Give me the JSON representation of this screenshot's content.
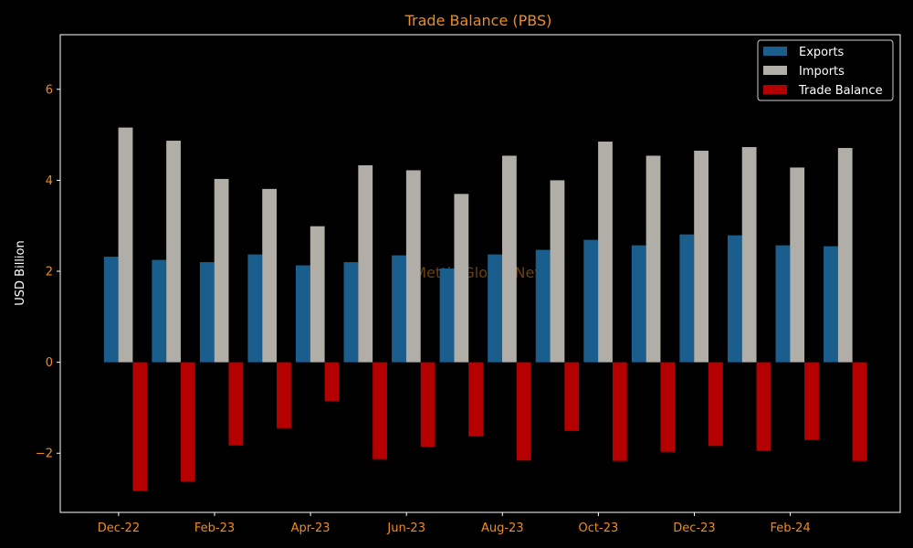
{
  "chart_data": {
    "type": "bar",
    "title": "Trade Balance (PBS)",
    "xlabel": "",
    "ylabel": "USD Billion",
    "watermark": "Mettis Global News",
    "ylim": [
      -3.3,
      7.2
    ],
    "yticks": [
      -2,
      0,
      2,
      4,
      6
    ],
    "ytick_labels": [
      "−2",
      "0",
      "2",
      "4",
      "6"
    ],
    "x_tick_labels": [
      "Dec-22",
      "Feb-23",
      "Apr-23",
      "Jun-23",
      "Aug-23",
      "Oct-23",
      "Dec-23",
      "Feb-24"
    ],
    "x_tick_every": 2,
    "categories_count": 16,
    "legend_position": "top-right",
    "grid": false,
    "colors": {
      "background": "#000000",
      "axes": "#ffffff",
      "text": "#f08c1e"
    },
    "series": [
      {
        "name": "Exports",
        "color": "#1a5e8e",
        "values": [
          2.32,
          2.25,
          2.2,
          2.37,
          2.13,
          2.2,
          2.35,
          2.06,
          2.37,
          2.47,
          2.69,
          2.57,
          2.81,
          2.79,
          2.57,
          2.55
        ]
      },
      {
        "name": "Imports",
        "color": "#b1aea8",
        "values": [
          5.16,
          4.87,
          4.03,
          3.81,
          2.99,
          4.33,
          4.22,
          3.7,
          4.54,
          4.0,
          4.85,
          4.54,
          4.65,
          4.73,
          4.28,
          4.71
        ]
      },
      {
        "name": "Trade Balance",
        "color": "#b40000",
        "values": [
          -2.83,
          -2.62,
          -1.83,
          -1.45,
          -0.85,
          -2.13,
          -1.86,
          -1.63,
          -2.16,
          -1.51,
          -2.17,
          -1.97,
          -1.84,
          -1.95,
          -1.71,
          -2.17
        ]
      }
    ]
  }
}
